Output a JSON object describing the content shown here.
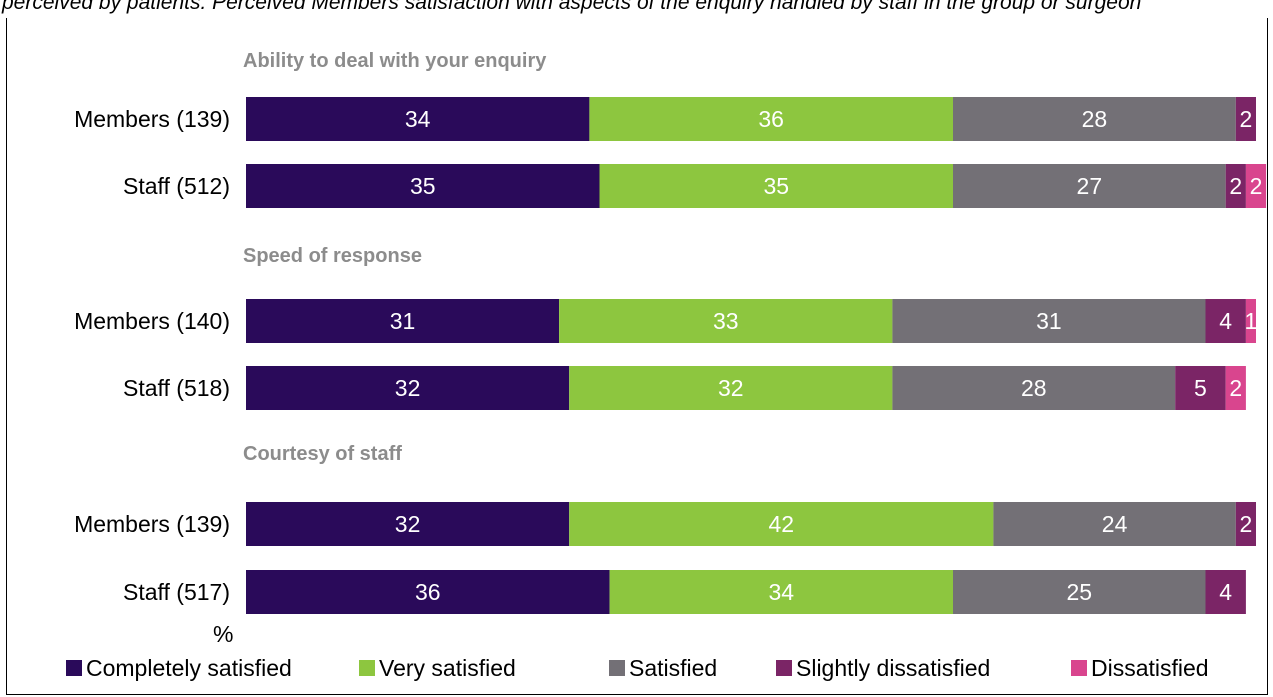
{
  "caption": "perceived by patients. Perceived Members satisfaction with aspects of the enquiry handled by staff in the group or surgeon",
  "chart_data": {
    "type": "bar",
    "orientation": "horizontal",
    "stacked": true,
    "unit": "%",
    "series_names": [
      "Completely satisfied",
      "Very satisfied",
      "Satisfied",
      "Slightly dissatisfied",
      "Dissatisfied"
    ],
    "colors": [
      "#2a0a5a",
      "#8dc63f",
      "#737076",
      "#7b2566",
      "#d9458e"
    ],
    "groups": [
      {
        "title": "Ability to deal with your enquiry",
        "rows": [
          {
            "label": "Members (139)",
            "values": [
              34,
              36,
              28,
              2,
              0
            ]
          },
          {
            "label": "Staff (512)",
            "values": [
              35,
              35,
              27,
              2,
              2
            ]
          }
        ]
      },
      {
        "title": "Speed of response",
        "rows": [
          {
            "label": "Members (140)",
            "values": [
              31,
              33,
              31,
              4,
              1
            ]
          },
          {
            "label": "Staff (518)",
            "values": [
              32,
              32,
              28,
              5,
              2
            ]
          }
        ]
      },
      {
        "title": "Courtesy of staff",
        "rows": [
          {
            "label": "Members (139)",
            "values": [
              32,
              42,
              24,
              2,
              0
            ]
          },
          {
            "label": "Staff (517)",
            "values": [
              36,
              34,
              25,
              4,
              0
            ]
          }
        ]
      }
    ],
    "legend_position": "bottom",
    "grid": false
  }
}
